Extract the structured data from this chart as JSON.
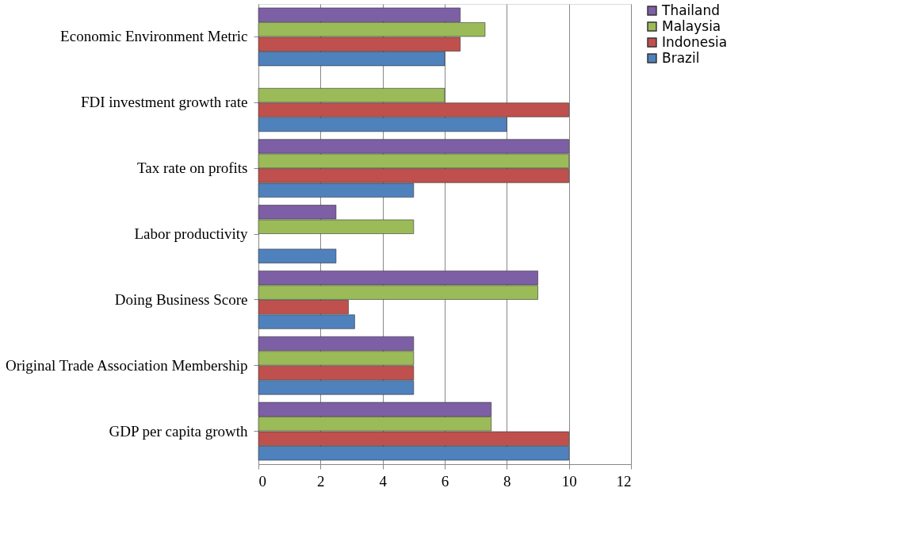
{
  "chart_data": {
    "type": "bar",
    "orientation": "horizontal",
    "categories": [
      "Economic Environment Metric",
      "FDI investment growth rate ",
      "Tax rate on profits",
      "Labor productivity",
      "Doing Business Score",
      "Original Trade Association Membership",
      "GDP per capita growth"
    ],
    "series": [
      {
        "name": "Thailand",
        "color": "#7d5fa5",
        "values": [
          6.5,
          null,
          10,
          2.5,
          9.0,
          5,
          7.5
        ]
      },
      {
        "name": "Malaysia",
        "color": "#9bbb59",
        "values": [
          7.3,
          6,
          10,
          5,
          9.0,
          5,
          7.5
        ]
      },
      {
        "name": "Indonesia",
        "color": "#c0504d",
        "values": [
          6.5,
          10,
          10,
          null,
          2.9,
          5,
          10
        ]
      },
      {
        "name": "Brazil",
        "color": "#4f81bd",
        "values": [
          6.0,
          8,
          5,
          2.5,
          3.1,
          5,
          10
        ]
      }
    ],
    "xlim": [
      0,
      12
    ],
    "xticks": [
      0,
      2,
      4,
      6,
      8,
      10,
      12
    ],
    "grid": "x",
    "legend": "right"
  }
}
